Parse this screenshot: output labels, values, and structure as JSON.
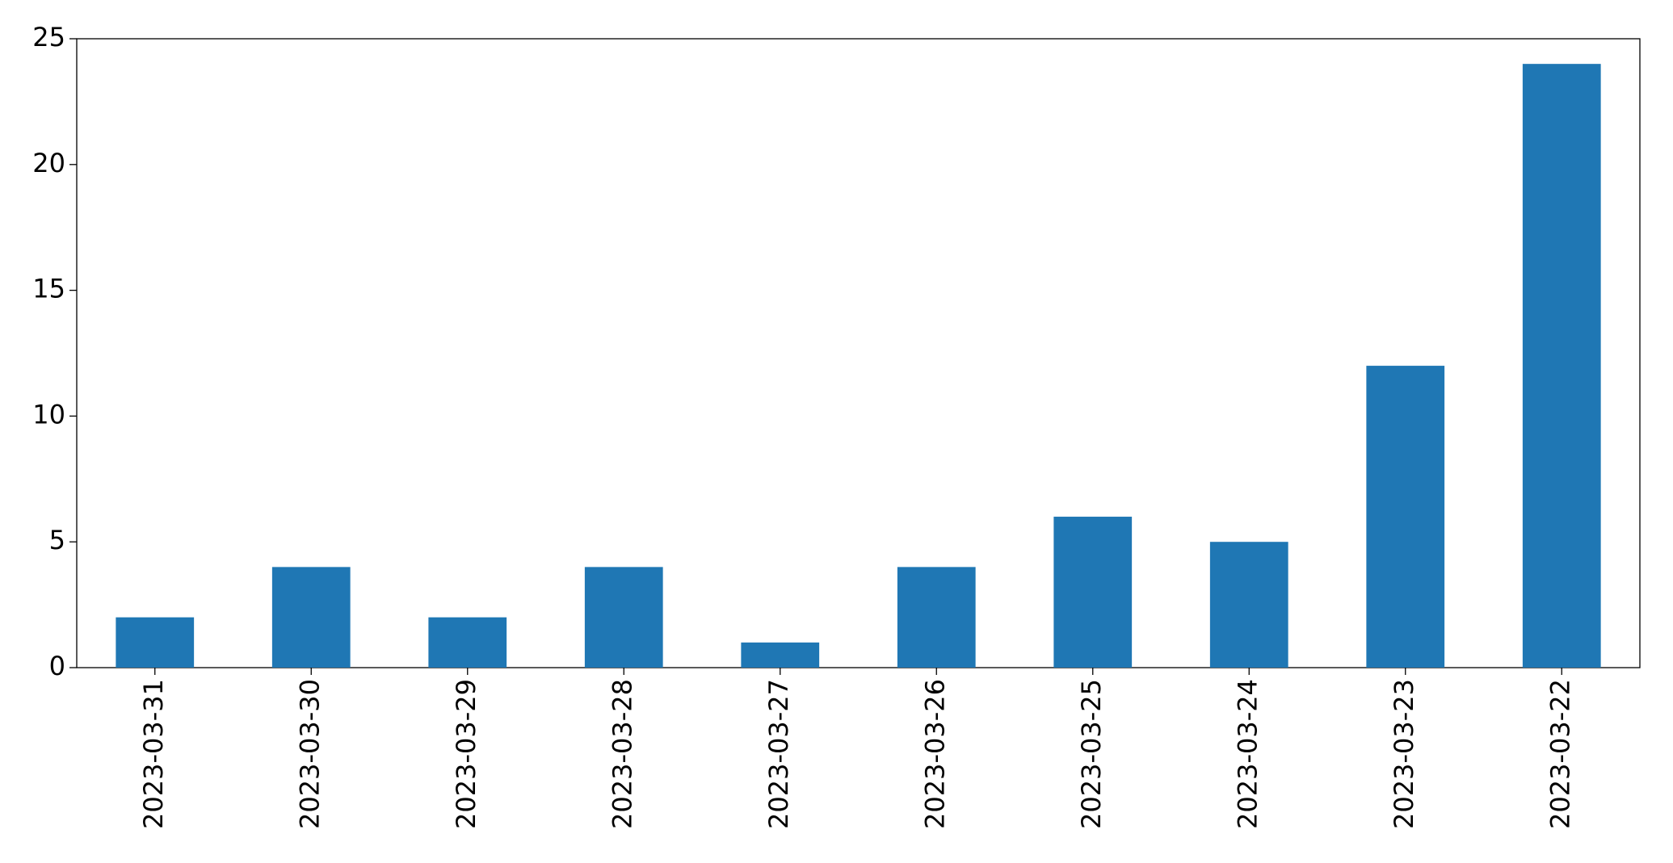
{
  "chart_data": {
    "type": "bar",
    "categories": [
      "2023-03-31",
      "2023-03-30",
      "2023-03-29",
      "2023-03-28",
      "2023-03-27",
      "2023-03-26",
      "2023-03-25",
      "2023-03-24",
      "2023-03-23",
      "2023-03-22"
    ],
    "values": [
      2,
      4,
      2,
      4,
      1,
      4,
      6,
      5,
      12,
      24
    ],
    "color": "#1f77b4",
    "ylim": [
      0,
      25
    ],
    "yticks": [
      0,
      5,
      10,
      15,
      20,
      25
    ],
    "grid": false
  }
}
